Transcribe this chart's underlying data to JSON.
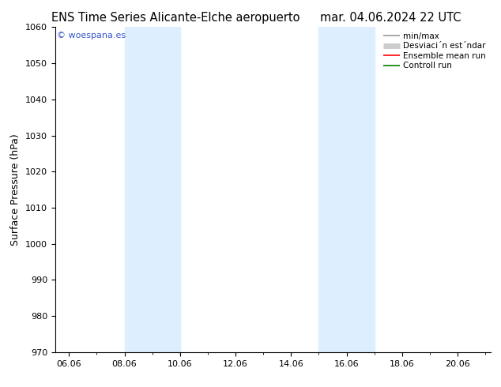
{
  "title_left": "ENS Time Series Alicante-Elche aeropuerto",
  "title_right": "mar. 04.06.2024 22 UTC",
  "ylabel": "Surface Pressure (hPa)",
  "ylim": [
    970,
    1060
  ],
  "yticks": [
    970,
    980,
    990,
    1000,
    1010,
    1020,
    1030,
    1040,
    1050,
    1060
  ],
  "xlim_start": 5.5,
  "xlim_end": 21.2,
  "xtick_positions": [
    6,
    8,
    10,
    12,
    14,
    16,
    18,
    20
  ],
  "xtick_labels": [
    "06.06",
    "08.06",
    "10.06",
    "12.06",
    "14.06",
    "16.06",
    "18.06",
    "20.06"
  ],
  "shaded_bands": [
    {
      "xmin": 8.0,
      "xmax": 10.0
    },
    {
      "xmin": 15.0,
      "xmax": 17.0
    }
  ],
  "shade_color": "#ddeeff",
  "background_color": "#ffffff",
  "plot_bg_color": "#ffffff",
  "watermark_text": "© woespana.es",
  "watermark_color": "#3355cc",
  "legend_entries": [
    {
      "label": "min/max",
      "color": "#999999",
      "lw": 1.2
    },
    {
      "label": "Desviaci´n est´ndar",
      "color": "#cccccc",
      "lw": 5
    },
    {
      "label": "Ensemble mean run",
      "color": "red",
      "lw": 1.2
    },
    {
      "label": "Controll run",
      "color": "green",
      "lw": 1.2
    }
  ],
  "title_fontsize": 10.5,
  "ylabel_fontsize": 9,
  "tick_fontsize": 8,
  "legend_fontsize": 7.5,
  "fig_width": 6.34,
  "fig_height": 4.9,
  "dpi": 100
}
